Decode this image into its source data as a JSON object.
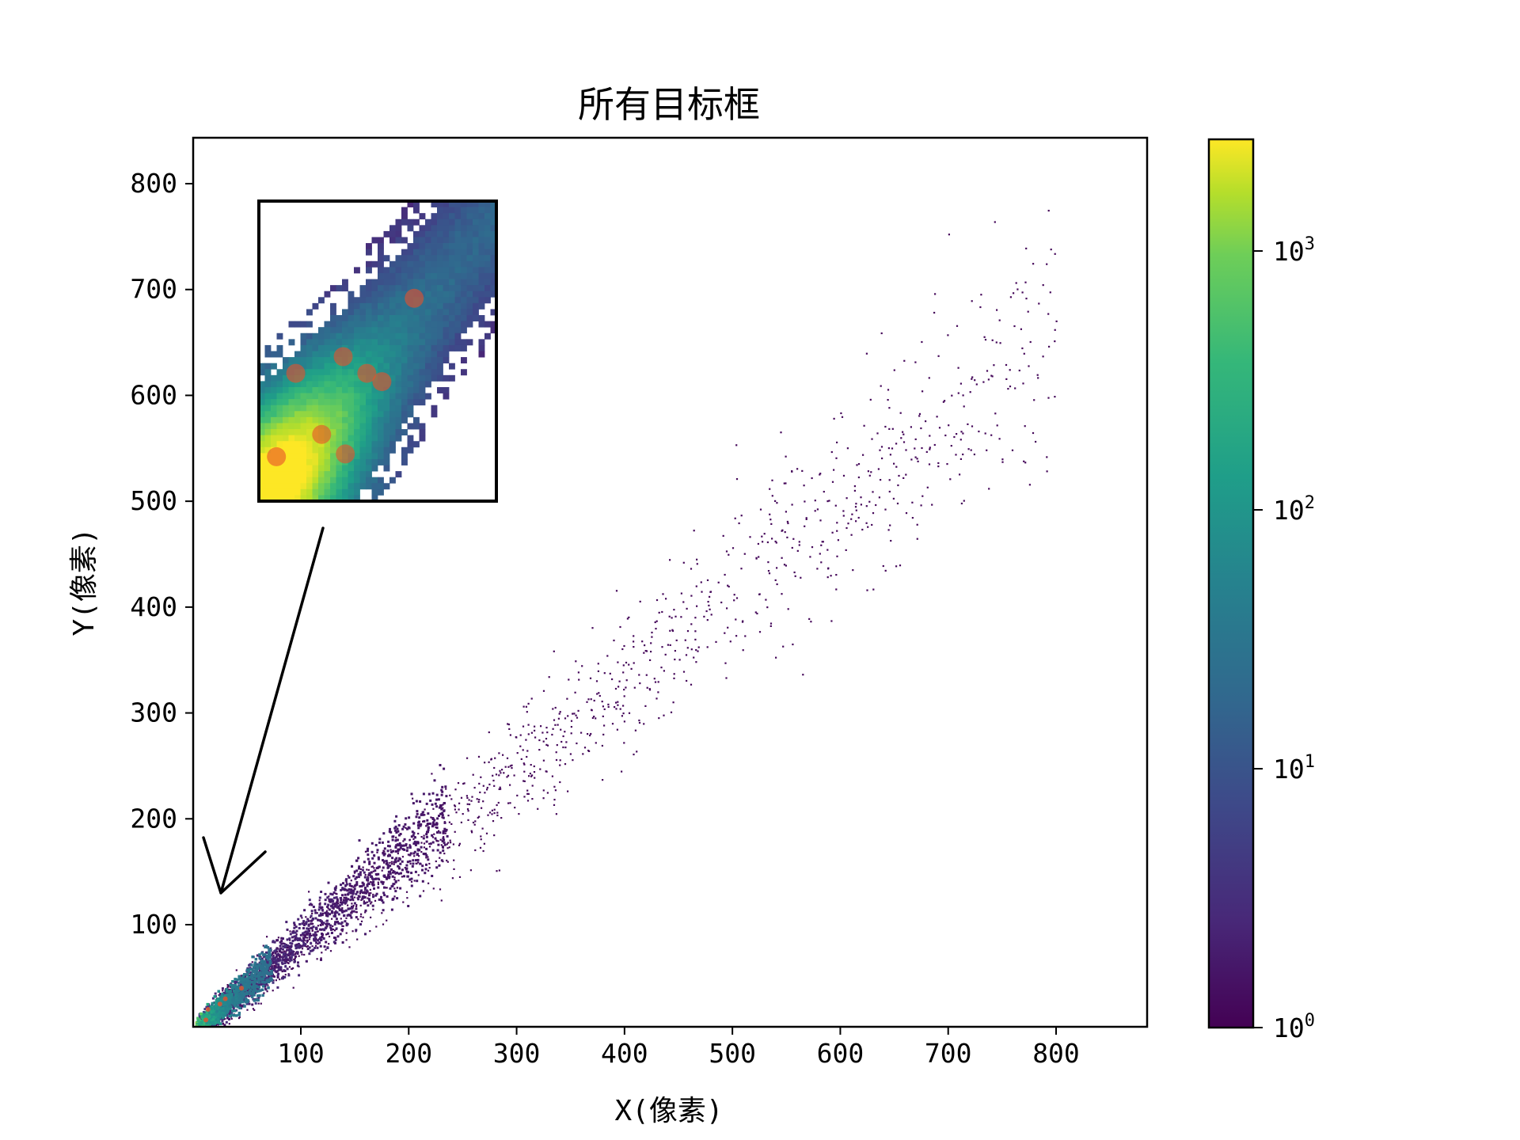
{
  "chart_data": {
    "type": "heatmap",
    "title": "所有目标框",
    "xlabel": "X(像素)",
    "ylabel": "Y(像素)",
    "xlim": [
      0,
      885
    ],
    "ylim": [
      0,
      845
    ],
    "xticks": [
      100,
      200,
      300,
      400,
      500,
      600,
      700,
      800
    ],
    "yticks": [
      100,
      200,
      300,
      400,
      500,
      600,
      700,
      800
    ],
    "colorbar": {
      "scale": "log",
      "colormap": "viridis",
      "range": [
        1,
        2700
      ],
      "ticks": [
        {
          "value": 1,
          "base": "10",
          "exp": "0"
        },
        {
          "value": 10,
          "base": "10",
          "exp": "1"
        },
        {
          "value": 100,
          "base": "10",
          "exp": "2"
        },
        {
          "value": 1000,
          "base": "10",
          "exp": "3"
        }
      ]
    },
    "relationship": "box width vs box height, roughly linear with slope ~0.85",
    "density_hotspots": [
      {
        "x": 14,
        "y": 20,
        "level": "highest"
      },
      {
        "x": 12,
        "y": 10,
        "level": "highest"
      },
      {
        "x": 25,
        "y": 25,
        "level": "highest"
      },
      {
        "x": 30,
        "y": 30,
        "level": "high"
      },
      {
        "x": 45,
        "y": 40,
        "level": "high"
      }
    ],
    "inset": {
      "description": "zoomed view of the dense region near the origin",
      "markers": 8
    },
    "colors": {
      "low": "#440154",
      "mid": "#21918c",
      "high": "#fde725",
      "marker": "#e8502a"
    }
  }
}
